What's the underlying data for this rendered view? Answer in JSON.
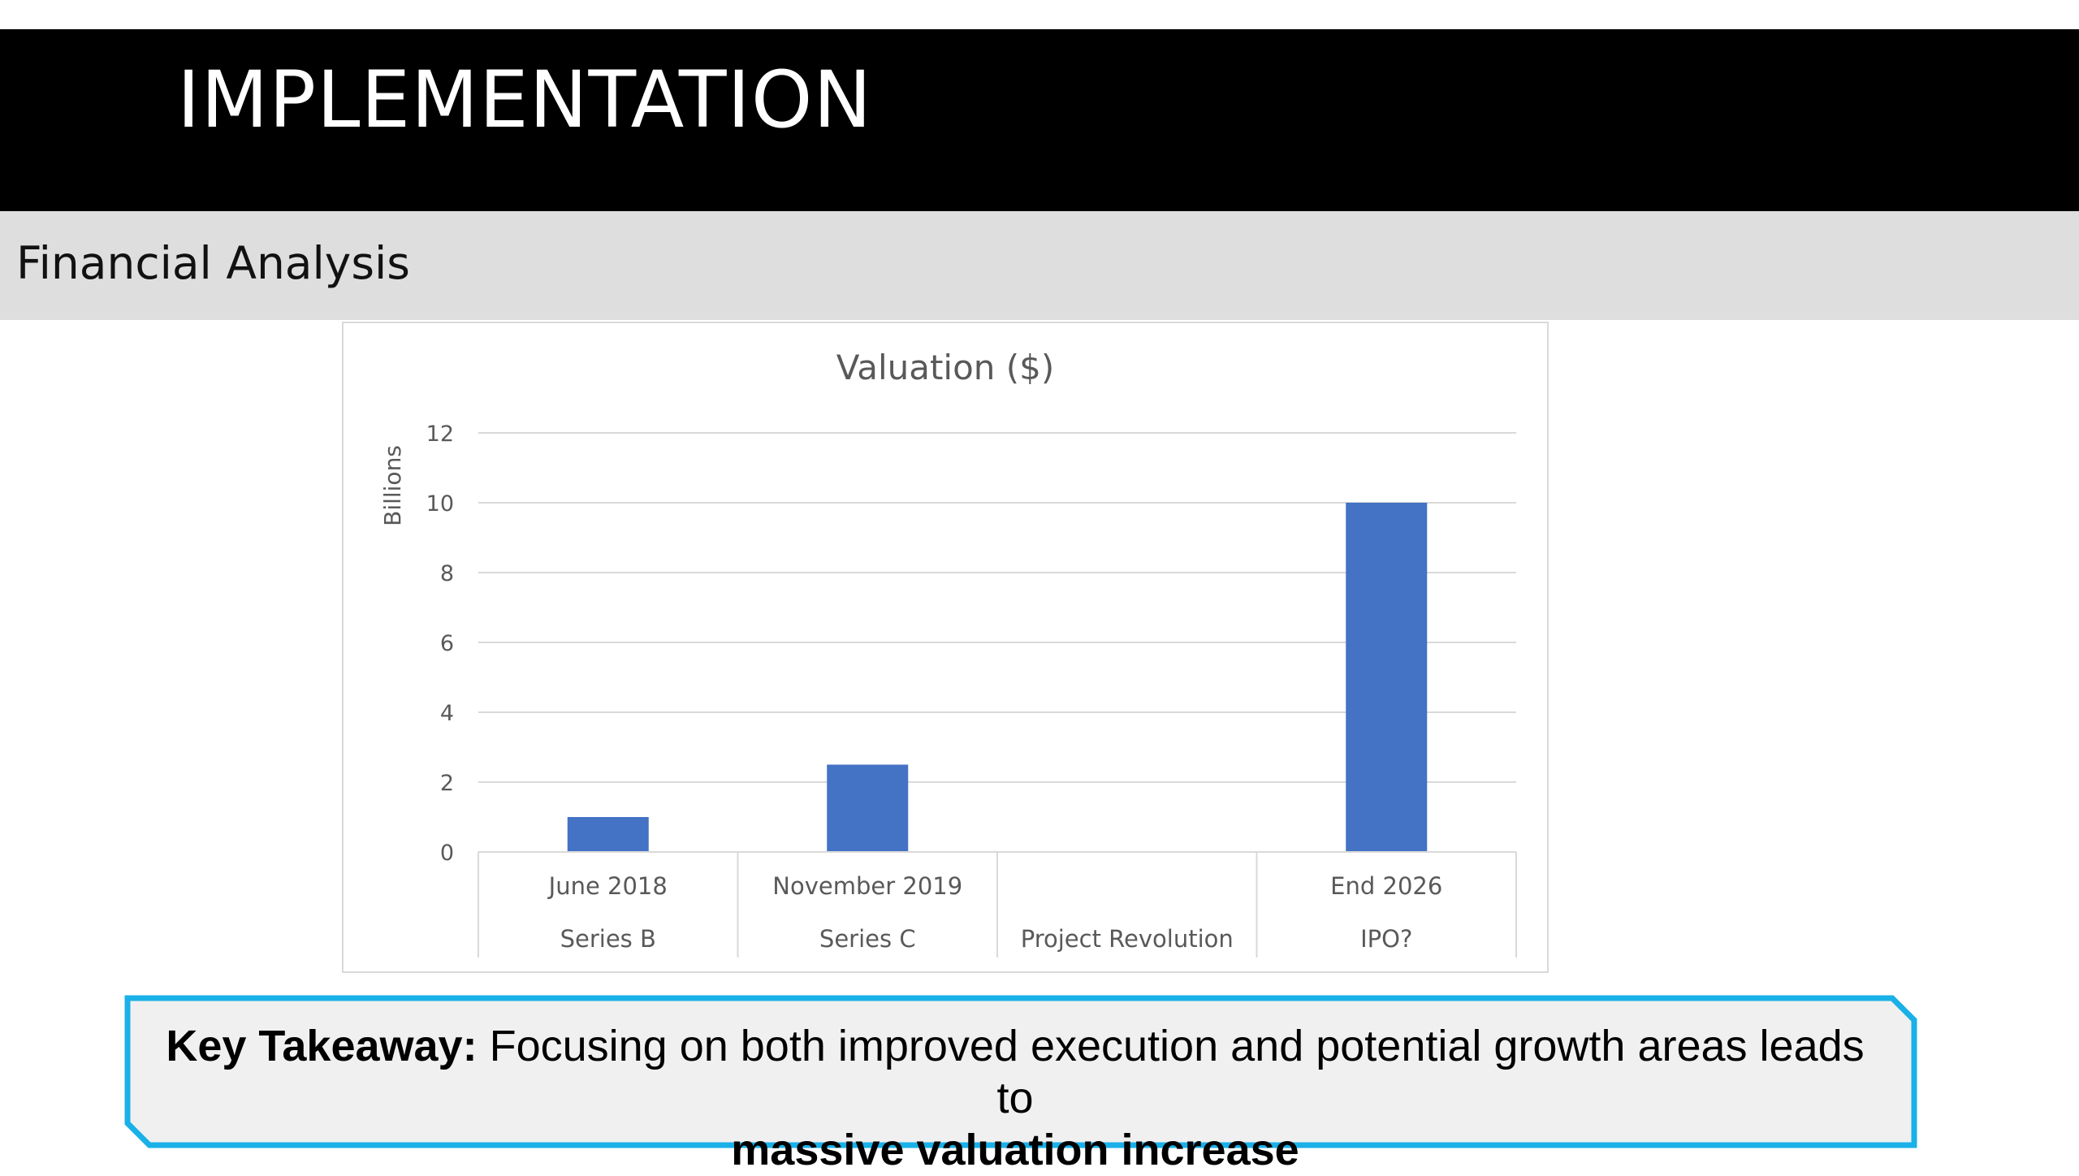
{
  "slide": {
    "title": "IMPLEMENTATION",
    "subtitle": "Financial Analysis"
  },
  "colors": {
    "header_bg": "#000000",
    "subtitle_bg": "#dedede",
    "bar": "#4472c4",
    "callout_border": "#1ab0e8",
    "callout_bg": "#f0f0f0"
  },
  "chart_data": {
    "type": "bar",
    "title": "Valuation ($)",
    "xlabel": "",
    "ylabel": "Billions",
    "ylim": [
      0,
      12
    ],
    "yticks": [
      0,
      2,
      4,
      6,
      8,
      10,
      12
    ],
    "grid": true,
    "categories": [
      {
        "label": "June 2018",
        "group": "Series B"
      },
      {
        "label": "November 2019",
        "group": "Series C"
      },
      {
        "label": "",
        "group": "Project Revolution"
      },
      {
        "label": "End 2026",
        "group": "IPO?"
      }
    ],
    "values": [
      1,
      2.5,
      0,
      10
    ]
  },
  "takeaway": {
    "lead": "Key Takeaway:",
    "body": " Focusing on both improved execution and potential growth areas leads to",
    "emphasis": "massive valuation increase"
  }
}
